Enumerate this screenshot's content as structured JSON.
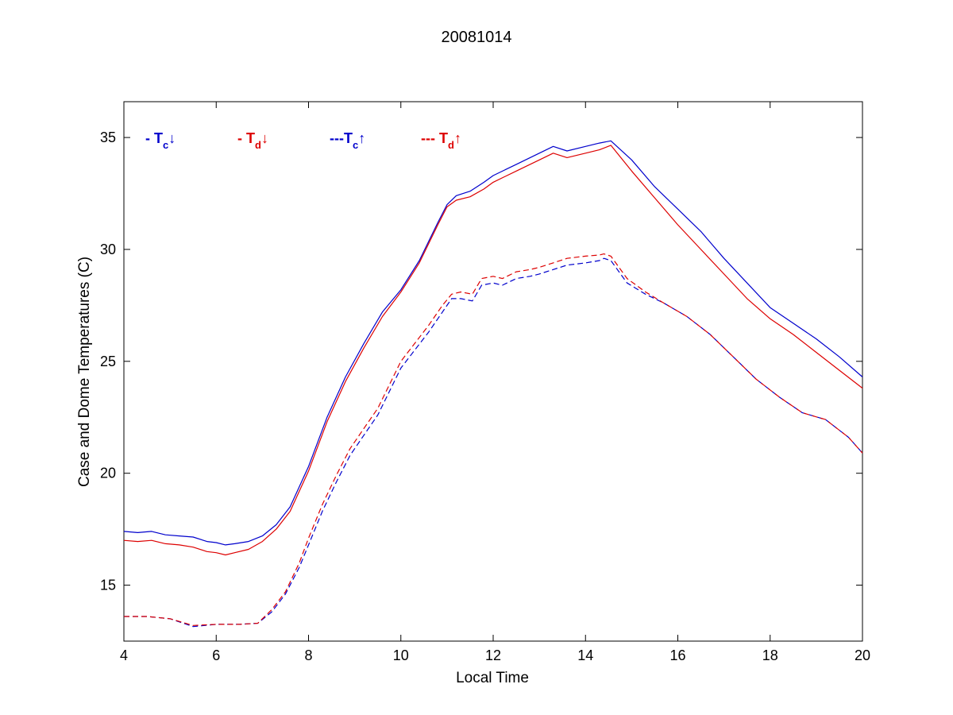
{
  "chart_data": {
    "type": "line",
    "title": "20081014",
    "xlabel": "Local Time",
    "ylabel": "Case and Dome Temperatures (C)",
    "xlim": [
      4,
      20
    ],
    "ylim": [
      12.5,
      36.6
    ],
    "xticks": [
      4,
      6,
      8,
      10,
      12,
      14,
      16,
      18,
      20
    ],
    "yticks": [
      15,
      20,
      25,
      30,
      35
    ],
    "grid": false,
    "legend_placement": "top-left",
    "series": [
      {
        "name": "- Tc↓",
        "legend": {
          "prefix": "- T",
          "sub": "c",
          "arrow": "↓"
        },
        "color": "#0000cc",
        "style": "solid",
        "x": [
          4.0,
          4.3,
          4.6,
          4.9,
          5.2,
          5.5,
          5.8,
          6.0,
          6.2,
          6.4,
          6.7,
          7.0,
          7.3,
          7.6,
          8.0,
          8.4,
          8.8,
          9.2,
          9.6,
          10.0,
          10.4,
          10.8,
          11.0,
          11.2,
          11.5,
          11.8,
          12.0,
          12.5,
          13.0,
          13.3,
          13.6,
          14.0,
          14.3,
          14.55,
          15.0,
          15.5,
          16.0,
          16.5,
          17.0,
          17.5,
          18.0,
          18.5,
          19.0,
          19.5,
          20.0
        ],
        "y": [
          17.4,
          17.35,
          17.4,
          17.25,
          17.2,
          17.15,
          16.95,
          16.9,
          16.8,
          16.85,
          16.95,
          17.2,
          17.7,
          18.5,
          20.3,
          22.5,
          24.3,
          25.8,
          27.2,
          28.2,
          29.5,
          31.2,
          32.0,
          32.4,
          32.6,
          33.0,
          33.3,
          33.8,
          34.3,
          34.6,
          34.4,
          34.6,
          34.75,
          34.85,
          34.0,
          32.8,
          31.8,
          30.8,
          29.6,
          28.5,
          27.4,
          26.7,
          26.0,
          25.2,
          24.3
        ]
      },
      {
        "name": "- Td↓",
        "legend": {
          "prefix": "- T",
          "sub": "d",
          "arrow": "↓"
        },
        "color": "#dd0000",
        "style": "solid",
        "x": [
          4.0,
          4.3,
          4.6,
          4.9,
          5.2,
          5.5,
          5.8,
          6.0,
          6.2,
          6.4,
          6.7,
          7.0,
          7.3,
          7.6,
          8.0,
          8.4,
          8.8,
          9.2,
          9.6,
          10.0,
          10.4,
          10.8,
          11.0,
          11.2,
          11.5,
          11.8,
          12.0,
          12.5,
          13.0,
          13.3,
          13.6,
          14.0,
          14.3,
          14.55,
          15.0,
          15.5,
          16.0,
          16.5,
          17.0,
          17.5,
          18.0,
          18.5,
          19.0,
          19.5,
          20.0
        ],
        "y": [
          17.0,
          16.95,
          17.0,
          16.85,
          16.8,
          16.7,
          16.5,
          16.45,
          16.35,
          16.45,
          16.6,
          16.95,
          17.5,
          18.3,
          20.1,
          22.3,
          24.1,
          25.6,
          27.0,
          28.1,
          29.4,
          31.1,
          31.9,
          32.2,
          32.35,
          32.7,
          33.0,
          33.5,
          34.0,
          34.3,
          34.1,
          34.3,
          34.45,
          34.65,
          33.5,
          32.3,
          31.1,
          30.0,
          28.9,
          27.8,
          26.9,
          26.2,
          25.4,
          24.6,
          23.8
        ]
      },
      {
        "name": "---Tc↑",
        "legend": {
          "prefix": "---T",
          "sub": "c",
          "arrow": "↑"
        },
        "color": "#0000cc",
        "style": "dashed",
        "x": [
          4.0,
          4.5,
          5.0,
          5.5,
          6.0,
          6.5,
          6.9,
          7.2,
          7.5,
          7.8,
          8.0,
          8.3,
          8.6,
          8.9,
          9.2,
          9.5,
          10.0,
          10.3,
          10.6,
          10.9,
          11.1,
          11.3,
          11.55,
          11.75,
          12.0,
          12.2,
          12.5,
          12.8,
          13.0,
          13.3,
          13.6,
          14.0,
          14.3,
          14.4,
          14.55,
          14.9,
          15.3,
          15.7,
          16.2,
          16.7,
          17.2,
          17.7,
          18.2,
          18.7,
          19.2,
          19.7,
          20.0
        ],
        "y": [
          13.6,
          13.6,
          13.5,
          13.15,
          13.25,
          13.25,
          13.3,
          13.8,
          14.6,
          15.8,
          16.8,
          18.3,
          19.6,
          20.8,
          21.7,
          22.6,
          24.7,
          25.5,
          26.3,
          27.2,
          27.8,
          27.8,
          27.7,
          28.4,
          28.5,
          28.4,
          28.7,
          28.8,
          28.9,
          29.1,
          29.3,
          29.4,
          29.5,
          29.6,
          29.5,
          28.5,
          28.0,
          27.6,
          27.0,
          26.2,
          25.2,
          24.2,
          23.4,
          22.7,
          22.4,
          21.6,
          20.9
        ]
      },
      {
        "name": "--- Td↑",
        "legend": {
          "prefix": "--- T",
          "sub": "d",
          "arrow": "↑"
        },
        "color": "#dd0000",
        "style": "dashed",
        "x": [
          4.0,
          4.5,
          5.0,
          5.5,
          6.0,
          6.5,
          6.9,
          7.2,
          7.5,
          7.8,
          8.0,
          8.3,
          8.6,
          8.9,
          9.2,
          9.5,
          10.0,
          10.3,
          10.6,
          10.9,
          11.1,
          11.3,
          11.55,
          11.75,
          12.0,
          12.2,
          12.5,
          12.8,
          13.0,
          13.3,
          13.6,
          14.0,
          14.3,
          14.4,
          14.55,
          14.9,
          15.3,
          15.7,
          16.2,
          16.7,
          17.2,
          17.7,
          18.2,
          18.7,
          19.2,
          19.7,
          20.0
        ],
        "y": [
          13.6,
          13.6,
          13.5,
          13.2,
          13.25,
          13.25,
          13.3,
          13.9,
          14.7,
          16.0,
          17.1,
          18.6,
          19.9,
          21.1,
          22.0,
          22.9,
          25.0,
          25.8,
          26.6,
          27.5,
          28.0,
          28.1,
          28.0,
          28.7,
          28.8,
          28.7,
          29.0,
          29.1,
          29.2,
          29.4,
          29.6,
          29.7,
          29.75,
          29.8,
          29.7,
          28.7,
          28.1,
          27.6,
          27.0,
          26.2,
          25.2,
          24.2,
          23.4,
          22.7,
          22.4,
          21.6,
          20.9
        ]
      }
    ]
  }
}
